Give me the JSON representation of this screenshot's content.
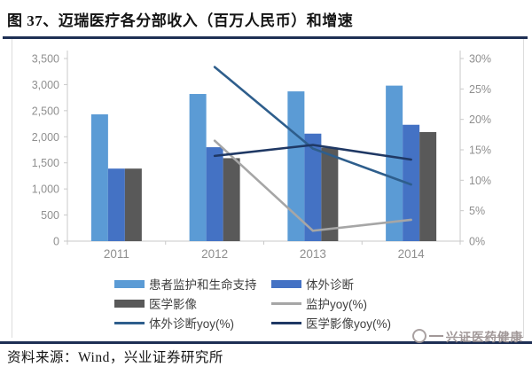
{
  "title": "图 37、迈瑞医疗各分部收入（百万人民币）和增速",
  "source": "资料来源：Wind，兴业证券研究所",
  "watermark": "兴证医药健康",
  "colors": {
    "rule_navy": "#1E2F54",
    "axis_text": "#8F8F8F",
    "axis_line": "#C9C9C9",
    "bar_light_blue": "#5B9BD5",
    "bar_blue": "#4472C4",
    "bar_gray": "#595959",
    "line_light_gray": "#A6A6A6",
    "line_steel_blue": "#2E5E8C",
    "line_navy": "#1F3864",
    "watermark_gray": "#978D8D"
  },
  "chart_data": {
    "type": "bar",
    "subtype": "clustered bars with yoy growth lines (combo chart, dual axis)",
    "title": "迈瑞医疗各分部收入（百万人民币）和增速",
    "categories": [
      "2011",
      "2012",
      "2013",
      "2014"
    ],
    "bar_series": [
      {
        "name": "患者监护和生命支持",
        "color": "#5B9BD5",
        "axis": "left",
        "values": [
          2430,
          2820,
          2870,
          2980
        ]
      },
      {
        "name": "体外诊断",
        "color": "#4472C4",
        "axis": "left",
        "values": [
          1390,
          1800,
          2060,
          2230
        ]
      },
      {
        "name": "医学影像",
        "color": "#595959",
        "axis": "left",
        "values": [
          1390,
          1590,
          1790,
          2090
        ]
      }
    ],
    "line_series": [
      {
        "name": "监护yoy(%)",
        "color": "#A6A6A6",
        "axis": "right",
        "start_category_index": 1,
        "values": [
          16.5,
          1.7,
          3.5
        ]
      },
      {
        "name": "体外诊断yoy(%)",
        "color": "#2E5E8C",
        "axis": "right",
        "start_category_index": 1,
        "values": [
          28.6,
          15.2,
          9.3
        ]
      },
      {
        "name": "医学影像yoy(%)",
        "color": "#1F3864",
        "axis": "right",
        "start_category_index": 1,
        "values": [
          14.0,
          15.8,
          13.4
        ]
      }
    ],
    "left_axis": {
      "min": 0,
      "max": 3500,
      "step": 500,
      "tick_labels": [
        "3,500",
        "3,000",
        "2,500",
        "2,000",
        "1,500",
        "1,000",
        "500",
        "0"
      ]
    },
    "right_axis": {
      "min": 0,
      "max": 30,
      "step": 5,
      "tick_labels": [
        "30%",
        "25%",
        "20%",
        "15%",
        "10%",
        "5%",
        "0%"
      ]
    },
    "gridlines": false,
    "legend_position": "bottom"
  }
}
